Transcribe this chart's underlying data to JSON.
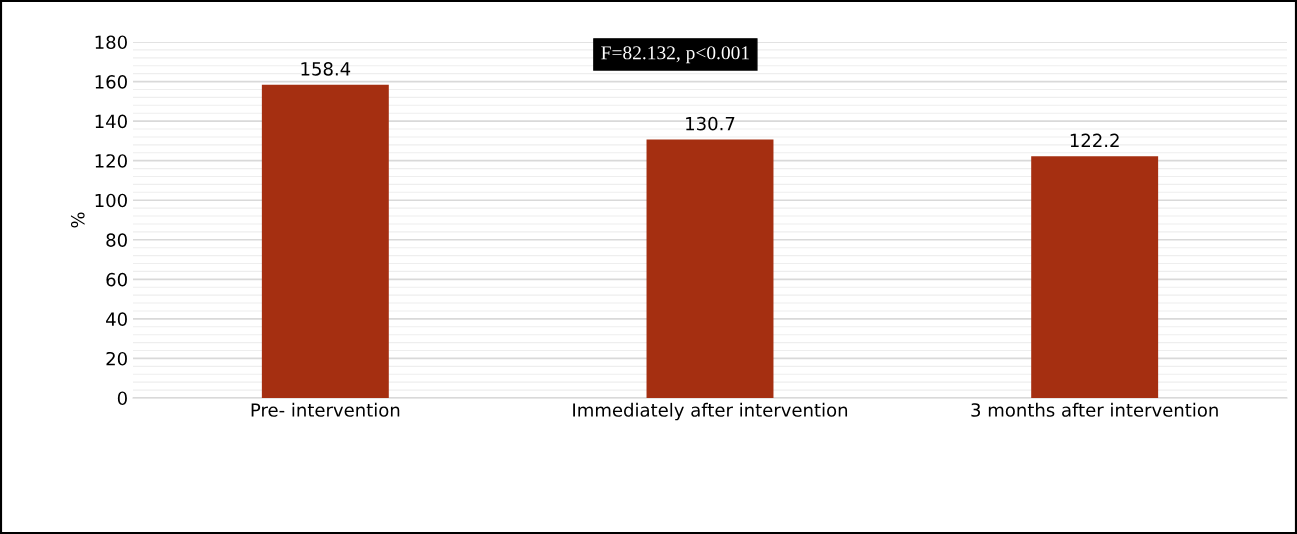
{
  "chart_data": {
    "type": "bar",
    "ylabel": "%",
    "categories": [
      "Pre- intervention",
      "Immediately after intervention",
      "3 months after intervention"
    ],
    "values": [
      158.4,
      130.7,
      122.2
    ],
    "color": "#a52f11",
    "data_labels": true,
    "ylim": [
      0,
      180
    ],
    "yticks": [
      0,
      20,
      40,
      60,
      80,
      100,
      120,
      140,
      160,
      180
    ],
    "grid": "y",
    "annotations": [
      "F=82.132, p<0.001"
    ]
  }
}
